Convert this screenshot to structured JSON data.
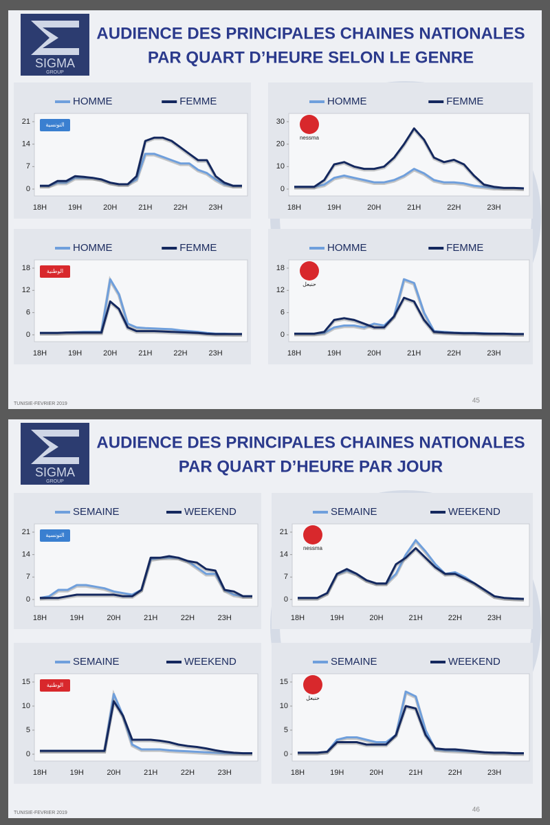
{
  "slides": [
    {
      "title": [
        "AUDIENCE DES PRINCIPALES CHAINES NATIONALES",
        "PAR QUART D’HEURE SELON LE GENRE"
      ],
      "brand": "SIGMA",
      "brand_sub": "GROUP",
      "footer": "TUNISIE-FEVRIER 2019",
      "page": "45"
    },
    {
      "title": [
        "AUDIENCE DES PRINCIPALES CHAINES NATIONALES",
        "PAR QUART D’HEURE PAR JOUR"
      ],
      "brand": "SIGMA",
      "brand_sub": "GROUP",
      "footer": "TUNISIE-FEVRIER 2019",
      "page": "46"
    }
  ],
  "chart_data": [
    {
      "type": "line",
      "logo": "التونسية",
      "categories": [
        "18H",
        null,
        null,
        null,
        "19H",
        null,
        null,
        null,
        "20H",
        null,
        null,
        null,
        "21H",
        null,
        null,
        null,
        "22H",
        null,
        null,
        null,
        "23H",
        null,
        null,
        null
      ],
      "ylim": [
        0,
        21
      ],
      "yticks": [
        0,
        7,
        14,
        21
      ],
      "series": [
        {
          "name": "HOMME",
          "color": "#6f9fdc",
          "values": [
            1,
            1,
            2,
            2,
            3.5,
            3.5,
            3.5,
            3,
            2,
            1.5,
            1.5,
            3,
            11,
            11,
            10,
            9,
            8,
            8,
            6,
            5,
            3,
            1.5,
            1,
            1
          ]
        },
        {
          "name": "FEMME",
          "color": "#14285e",
          "values": [
            1,
            1,
            2.5,
            2.5,
            4,
            3.8,
            3.5,
            3,
            2,
            1.5,
            1.5,
            4,
            15,
            16,
            16,
            15,
            13,
            11,
            9,
            9,
            4,
            2,
            1,
            1
          ]
        }
      ]
    },
    {
      "type": "line",
      "logo": "nessma",
      "categories": [
        "18H",
        null,
        null,
        null,
        "19H",
        null,
        null,
        null,
        "20H",
        null,
        null,
        null,
        "21H",
        null,
        null,
        null,
        "22H",
        null,
        null,
        null,
        "23H",
        null,
        null,
        null
      ],
      "ylim": [
        0,
        30
      ],
      "yticks": [
        0,
        10,
        20,
        30
      ],
      "series": [
        {
          "name": "HOMME",
          "color": "#6f9fdc",
          "values": [
            1,
            1,
            1,
            2,
            5,
            6,
            5,
            4,
            3,
            3,
            4,
            6,
            9,
            7,
            4,
            3,
            3,
            2.5,
            1.5,
            1,
            0.5,
            0.5,
            0.5,
            0.3
          ]
        },
        {
          "name": "FEMME",
          "color": "#14285e",
          "values": [
            1,
            1,
            1,
            4,
            11,
            12,
            10,
            9,
            9,
            10,
            14,
            20,
            27,
            22,
            14,
            12,
            13,
            11,
            6,
            2,
            1,
            0.5,
            0.5,
            0.3
          ]
        }
      ]
    },
    {
      "type": "line",
      "logo": "الوطنية",
      "categories": [
        "18H",
        null,
        null,
        null,
        "19H",
        null,
        null,
        null,
        "20H",
        null,
        null,
        null,
        "21H",
        null,
        null,
        null,
        "22H",
        null,
        null,
        null,
        "23H",
        null,
        null,
        null
      ],
      "ylim": [
        0,
        18
      ],
      "yticks": [
        0,
        6,
        12,
        18
      ],
      "series": [
        {
          "name": "HOMME",
          "color": "#6f9fdc",
          "values": [
            0.5,
            0.5,
            0.5,
            0.6,
            0.7,
            0.8,
            0.8,
            0.8,
            15,
            11,
            3,
            2,
            1.8,
            1.7,
            1.6,
            1.5,
            1.2,
            1,
            0.8,
            0.5,
            0.3,
            0.3,
            0.2,
            0.2
          ]
        },
        {
          "name": "FEMME",
          "color": "#14285e",
          "values": [
            0.5,
            0.5,
            0.5,
            0.6,
            0.6,
            0.6,
            0.6,
            0.6,
            9,
            7,
            2,
            1,
            1,
            1,
            0.9,
            0.8,
            0.7,
            0.6,
            0.5,
            0.3,
            0.2,
            0.2,
            0.2,
            0.2
          ]
        }
      ]
    },
    {
      "type": "line",
      "logo": "حنبعل",
      "categories": [
        "18H",
        null,
        null,
        null,
        "19H",
        null,
        null,
        null,
        "20H",
        null,
        null,
        null,
        "21H",
        null,
        null,
        null,
        "22H",
        null,
        null,
        null,
        "23H",
        null,
        null,
        null
      ],
      "ylim": [
        0,
        18
      ],
      "yticks": [
        0,
        6,
        12,
        18
      ],
      "series": [
        {
          "name": "HOMME",
          "color": "#6f9fdc",
          "values": [
            0.3,
            0.3,
            0.3,
            0.5,
            2,
            2.5,
            2.5,
            2,
            3,
            2.5,
            5,
            15,
            14,
            6,
            1,
            0.8,
            0.6,
            0.5,
            0.5,
            0.4,
            0.3,
            0.3,
            0.2,
            0.2
          ]
        },
        {
          "name": "FEMME",
          "color": "#14285e",
          "values": [
            0.3,
            0.3,
            0.3,
            0.8,
            4,
            4.5,
            4,
            3,
            2,
            2,
            5,
            10,
            9,
            4,
            0.8,
            0.6,
            0.5,
            0.4,
            0.4,
            0.3,
            0.3,
            0.3,
            0.2,
            0.2
          ]
        }
      ]
    },
    {
      "type": "line",
      "logo": "التونسية",
      "categories": [
        "18H",
        null,
        null,
        null,
        "19H",
        null,
        null,
        null,
        "20H",
        null,
        null,
        null,
        "21H",
        null,
        null,
        null,
        "22H",
        null,
        null,
        null,
        "23H",
        null,
        null,
        null
      ],
      "ylim": [
        0,
        21
      ],
      "yticks": [
        0,
        7,
        14,
        21
      ],
      "series": [
        {
          "name": "SEMAINE",
          "color": "#6f9fdc",
          "values": [
            0.5,
            1,
            3,
            3,
            4.5,
            4.5,
            4,
            3.5,
            2.5,
            2,
            1.5,
            3,
            12.5,
            13,
            13,
            13,
            12,
            10,
            8,
            8,
            3,
            1.5,
            1,
            1
          ]
        },
        {
          "name": "WEEKEND",
          "color": "#14285e",
          "values": [
            0.5,
            0.5,
            0.5,
            1,
            1.5,
            1.5,
            1.5,
            1.5,
            1.5,
            1,
            1,
            3,
            13,
            13,
            13.5,
            13,
            12,
            11.5,
            9.5,
            9,
            3,
            2.5,
            1,
            1
          ]
        }
      ]
    },
    {
      "type": "line",
      "logo": "nessma",
      "categories": [
        "18H",
        null,
        null,
        null,
        "19H",
        null,
        null,
        null,
        "20H",
        null,
        null,
        null,
        "21H",
        null,
        null,
        null,
        "22H",
        null,
        null,
        null,
        "23H",
        null,
        null,
        null
      ],
      "ylim": [
        0,
        21
      ],
      "yticks": [
        0,
        7,
        14,
        21
      ],
      "series": [
        {
          "name": "SEMAINE",
          "color": "#6f9fdc",
          "values": [
            0.5,
            0.5,
            0.5,
            2,
            8,
            9,
            8,
            6,
            5,
            5,
            8,
            14,
            18.5,
            15,
            11,
            8,
            8.5,
            7,
            5,
            3,
            1,
            0.5,
            0.3,
            0.2
          ]
        },
        {
          "name": "WEEKEND",
          "color": "#14285e",
          "values": [
            0.5,
            0.5,
            0.5,
            2,
            8,
            9.5,
            8,
            6,
            5,
            5,
            11,
            13,
            16,
            13,
            10,
            8,
            8,
            6.5,
            5,
            3,
            1,
            0.5,
            0.3,
            0.2
          ]
        }
      ]
    },
    {
      "type": "line",
      "logo": "الوطنية",
      "categories": [
        "18H",
        null,
        null,
        null,
        "19H",
        null,
        null,
        null,
        "20H",
        null,
        null,
        null,
        "21H",
        null,
        null,
        null,
        "22H",
        null,
        null,
        null,
        "23H",
        null,
        null,
        null
      ],
      "ylim": [
        0,
        15
      ],
      "yticks": [
        0,
        5,
        10,
        15
      ],
      "series": [
        {
          "name": "SEMAINE",
          "color": "#6f9fdc",
          "values": [
            0.7,
            0.7,
            0.7,
            0.7,
            0.7,
            0.7,
            0.7,
            0.7,
            12.5,
            8,
            2,
            1,
            1,
            1,
            0.8,
            0.7,
            0.6,
            0.5,
            0.4,
            0.3,
            0.2,
            0.2,
            0.2,
            0.2
          ]
        },
        {
          "name": "WEEKEND",
          "color": "#14285e",
          "values": [
            0.7,
            0.7,
            0.7,
            0.7,
            0.7,
            0.7,
            0.7,
            0.7,
            11,
            8,
            3,
            3,
            3,
            2.8,
            2.5,
            2,
            1.7,
            1.5,
            1.2,
            0.8,
            0.5,
            0.3,
            0.2,
            0.2
          ]
        }
      ]
    },
    {
      "type": "line",
      "logo": "حنبعل",
      "categories": [
        "18H",
        null,
        null,
        null,
        "19H",
        null,
        null,
        null,
        "20H",
        null,
        null,
        null,
        "21H",
        null,
        null,
        null,
        "22H",
        null,
        null,
        null,
        "23H",
        null,
        null,
        null
      ],
      "ylim": [
        0,
        15
      ],
      "yticks": [
        0,
        5,
        10,
        15
      ],
      "series": [
        {
          "name": "SEMAINE",
          "color": "#6f9fdc",
          "values": [
            0.3,
            0.3,
            0.3,
            0.5,
            3,
            3.5,
            3.5,
            3,
            2.5,
            2.5,
            4,
            13,
            12,
            5,
            1,
            0.8,
            0.7,
            0.6,
            0.5,
            0.4,
            0.3,
            0.3,
            0.2,
            0.2
          ]
        },
        {
          "name": "WEEKEND",
          "color": "#14285e",
          "values": [
            0.3,
            0.3,
            0.3,
            0.5,
            2.5,
            2.5,
            2.5,
            2,
            2,
            2,
            4,
            10,
            9.5,
            4,
            1.2,
            1,
            1,
            0.8,
            0.6,
            0.4,
            0.3,
            0.3,
            0.2,
            0.2
          ]
        }
      ]
    }
  ]
}
